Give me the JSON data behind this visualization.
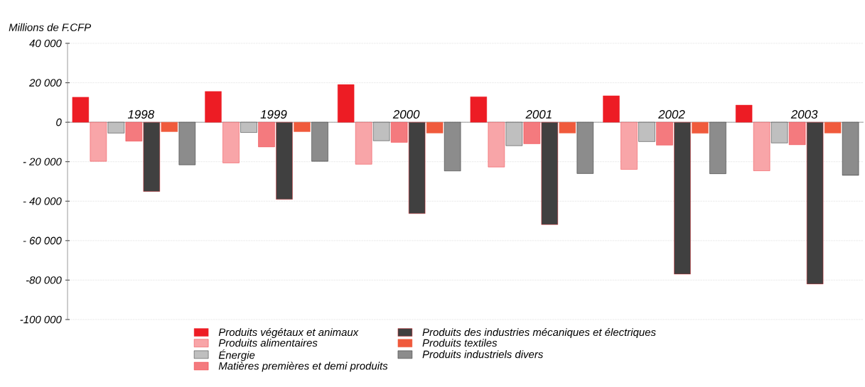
{
  "chart_data": {
    "type": "bar",
    "ylabel": "Millions de F.CFP",
    "categories": [
      "1998",
      "1999",
      "2000",
      "2001",
      "2002",
      "2003"
    ],
    "series": [
      {
        "name": "Produits végétaux et animaux",
        "color": "#ed1c24",
        "values": [
          12700,
          15600,
          19100,
          12900,
          13400,
          8700
        ]
      },
      {
        "name": "Produits alimentaires",
        "color": "#f8a5a8",
        "values": [
          -19800,
          -20600,
          -21300,
          -22700,
          -23900,
          -24600
        ]
      },
      {
        "name": "Énergie",
        "color": "#bfbfbf",
        "values": [
          -5500,
          -5200,
          -9400,
          -11900,
          -9800,
          -10500
        ]
      },
      {
        "name": "Matières premières et demi produits",
        "color": "#f47a7e",
        "values": [
          -9600,
          -12500,
          -10200,
          -10900,
          -11600,
          -11400
        ]
      },
      {
        "name": "Produits des industries mécaniques et électriques",
        "color": "#404040",
        "values": [
          -35100,
          -39100,
          -46300,
          -51900,
          -77000,
          -82000
        ]
      },
      {
        "name": "Produits textiles",
        "color": "#f05a3c",
        "values": [
          -4800,
          -4800,
          -5500,
          -5500,
          -5600,
          -5500
        ]
      },
      {
        "name": "Produits industriels divers",
        "color": "#8c8c8c",
        "values": [
          -21600,
          -19800,
          -24700,
          -26000,
          -26100,
          -26900
        ]
      }
    ],
    "ylim": [
      -100000,
      40000
    ],
    "yticks": [
      {
        "value": -100000,
        "label": "-100 000"
      },
      {
        "value": -80000,
        "label": "-80 000"
      },
      {
        "value": -60000,
        "label": "- 60 000"
      },
      {
        "value": -40000,
        "label": "- 40 000"
      },
      {
        "value": -20000,
        "label": "- 20 000"
      },
      0,
      {
        "value": 20000,
        "label": "20 000"
      },
      {
        "value": 40000,
        "label": "40 000"
      }
    ],
    "grid": "y",
    "legend": "bottom"
  }
}
